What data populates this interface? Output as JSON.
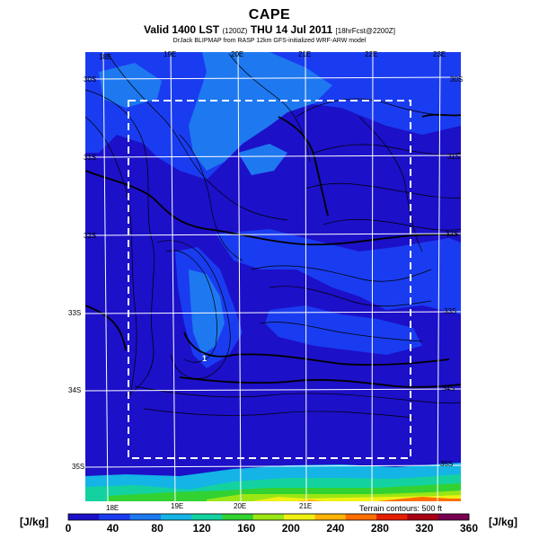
{
  "header": {
    "title": "CAPE",
    "subtitle_main": "Valid 1400 LST",
    "subtitle_small": "(1200Z)",
    "subtitle_date": "THU 14 Jul 2011",
    "subtitle_fcst": "[18hrFcst@2200Z]",
    "credit": "DrJack BLIPMAP from RASP 12km GFS-initialized WRF-ARW model"
  },
  "map": {
    "lon_labels_top": [
      "18E",
      "19E",
      "20E",
      "21E",
      "22E",
      "23E"
    ],
    "lon_labels_bottom": [
      "18E",
      "19E",
      "20E",
      "21E"
    ],
    "lat_labels_right": [
      "30S",
      "31S",
      "32S",
      "33S",
      "34S",
      "35S"
    ],
    "lat_labels_left": [
      "30S",
      "31S",
      "32S",
      "33S",
      "34S",
      "35S"
    ],
    "point_marker": "1",
    "terrain_note": "Terrain contours: 500 ft"
  },
  "colorbar": {
    "unit_left": "[J/kg]",
    "unit_right": "[J/kg]",
    "ticks": [
      "0",
      "40",
      "80",
      "120",
      "160",
      "200",
      "240",
      "280",
      "320",
      "360"
    ],
    "colors": [
      "#1c10c8",
      "#1a3cf0",
      "#1e78f0",
      "#14b4e6",
      "#14d2a0",
      "#32d232",
      "#9be614",
      "#f0f014",
      "#ffb40a",
      "#ff6e00",
      "#e61e00",
      "#aa0014",
      "#780050"
    ]
  }
}
